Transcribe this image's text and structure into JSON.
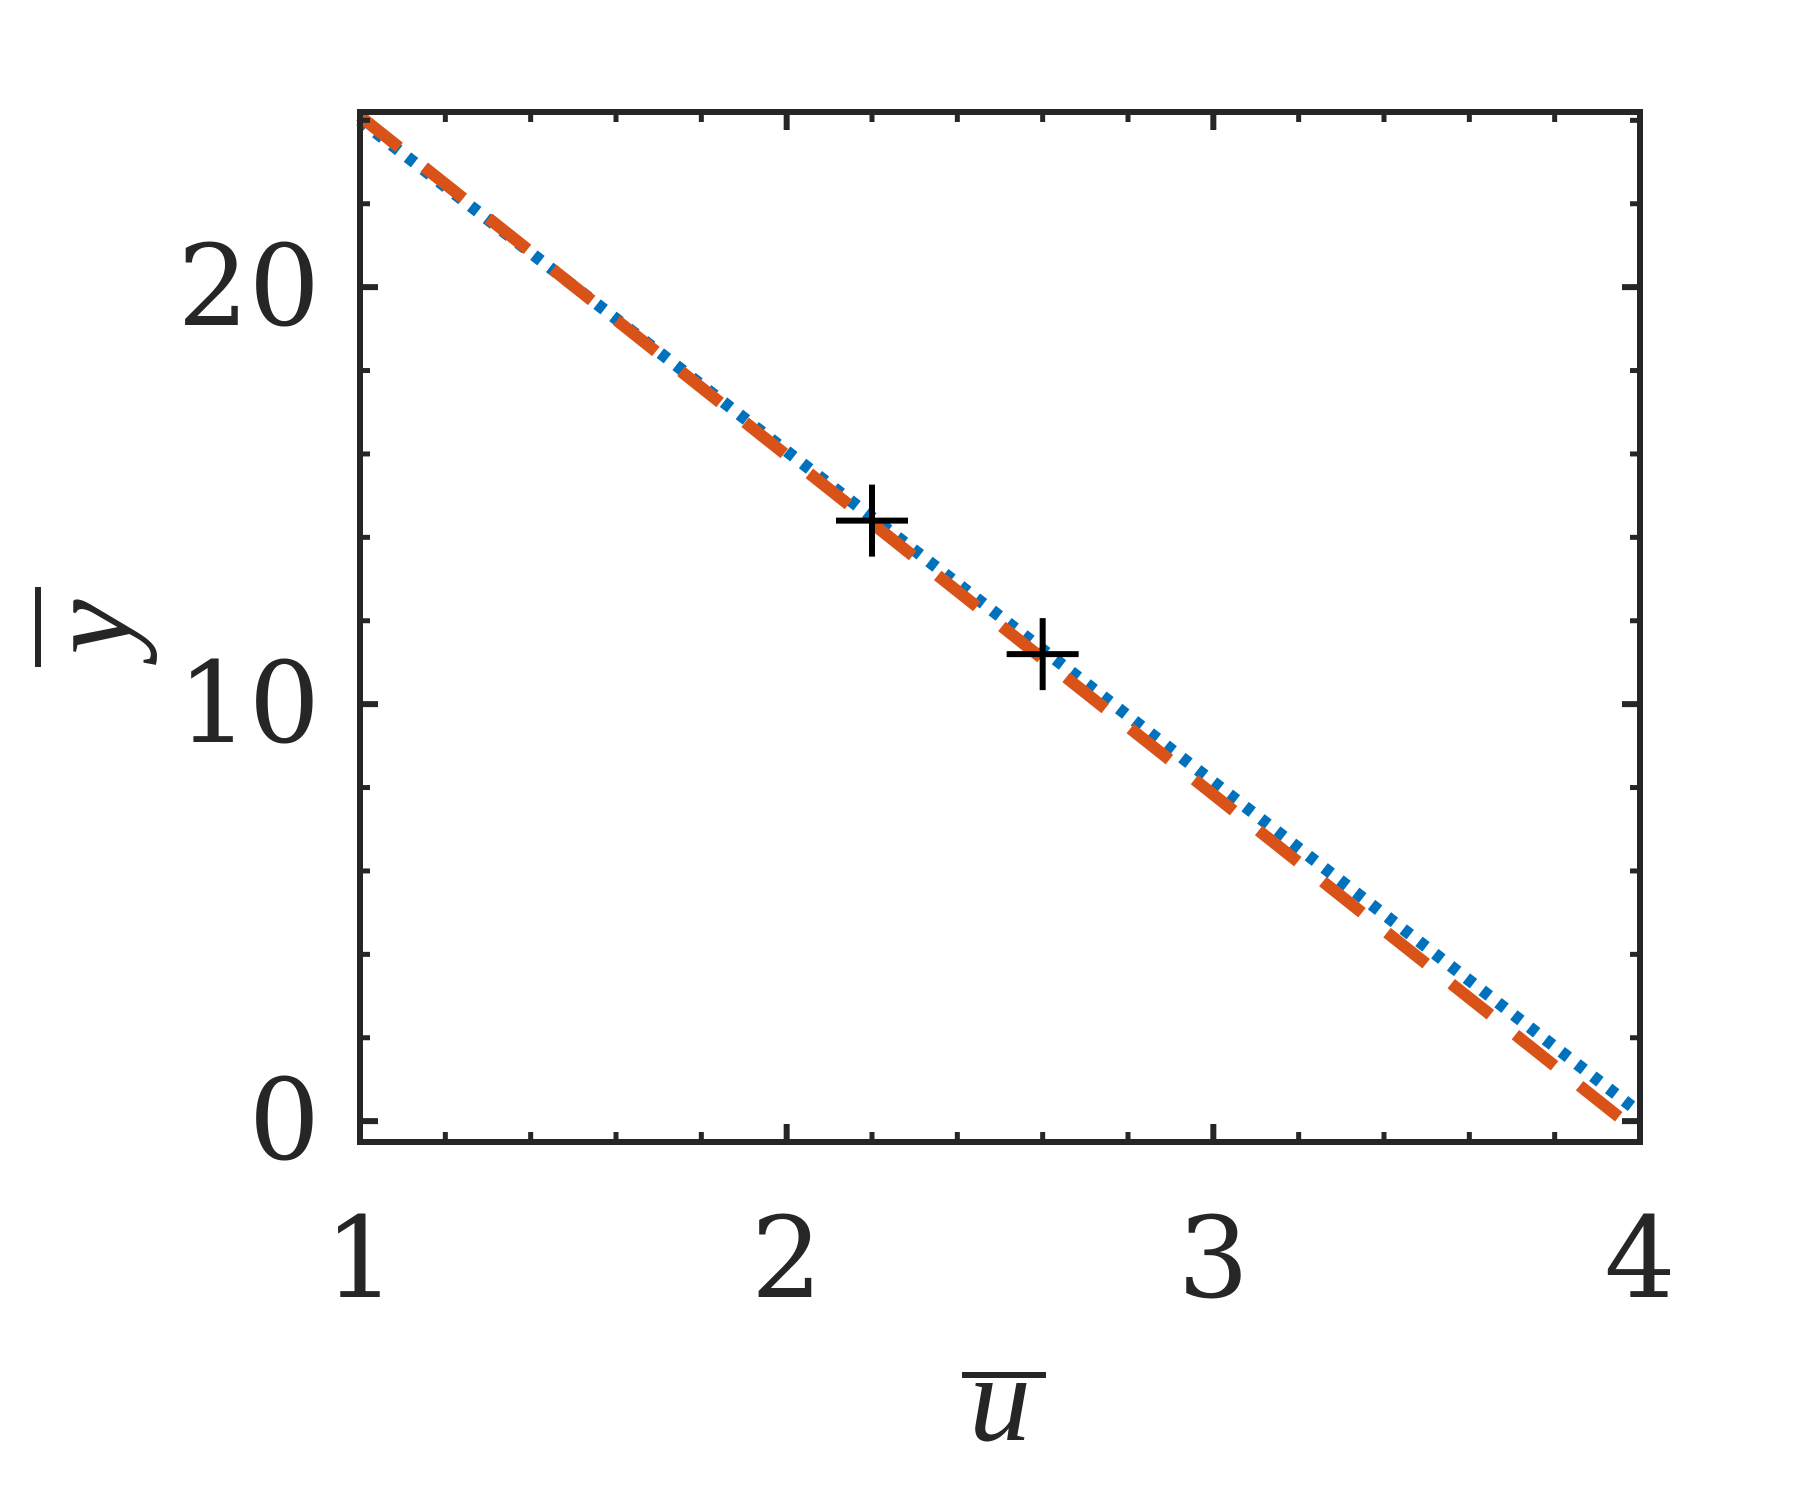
{
  "chart_data": {
    "type": "line",
    "title": "",
    "xlabel": "u",
    "ylabel": "y",
    "xlabel_overline": true,
    "ylabel_overline": true,
    "xlim": [
      1,
      4
    ],
    "ylim": [
      -0.5,
      24.2
    ],
    "x_ticks": [
      1,
      2,
      3,
      4
    ],
    "x_tick_labels": [
      "1",
      "2",
      "3",
      "4"
    ],
    "y_ticks": [
      0,
      10,
      20
    ],
    "y_tick_labels": [
      "0",
      "10",
      "20"
    ],
    "x_minor_step": 0.2,
    "y_minor_step": 2,
    "grid": false,
    "box": true,
    "series": [
      {
        "style": "dotted",
        "color": "#0072BD",
        "x": [
          1.0,
          4.0
        ],
        "y": [
          24.0,
          0.2
        ]
      },
      {
        "style": "dashed",
        "color": "#D95319",
        "x": [
          1.0,
          4.0
        ],
        "y": [
          24.1,
          -0.3
        ]
      }
    ],
    "markers": {
      "symbol": "+",
      "color": "#000000",
      "points": [
        {
          "x": 2.2,
          "y": 14.4
        },
        {
          "x": 2.6,
          "y": 11.2
        }
      ]
    }
  }
}
